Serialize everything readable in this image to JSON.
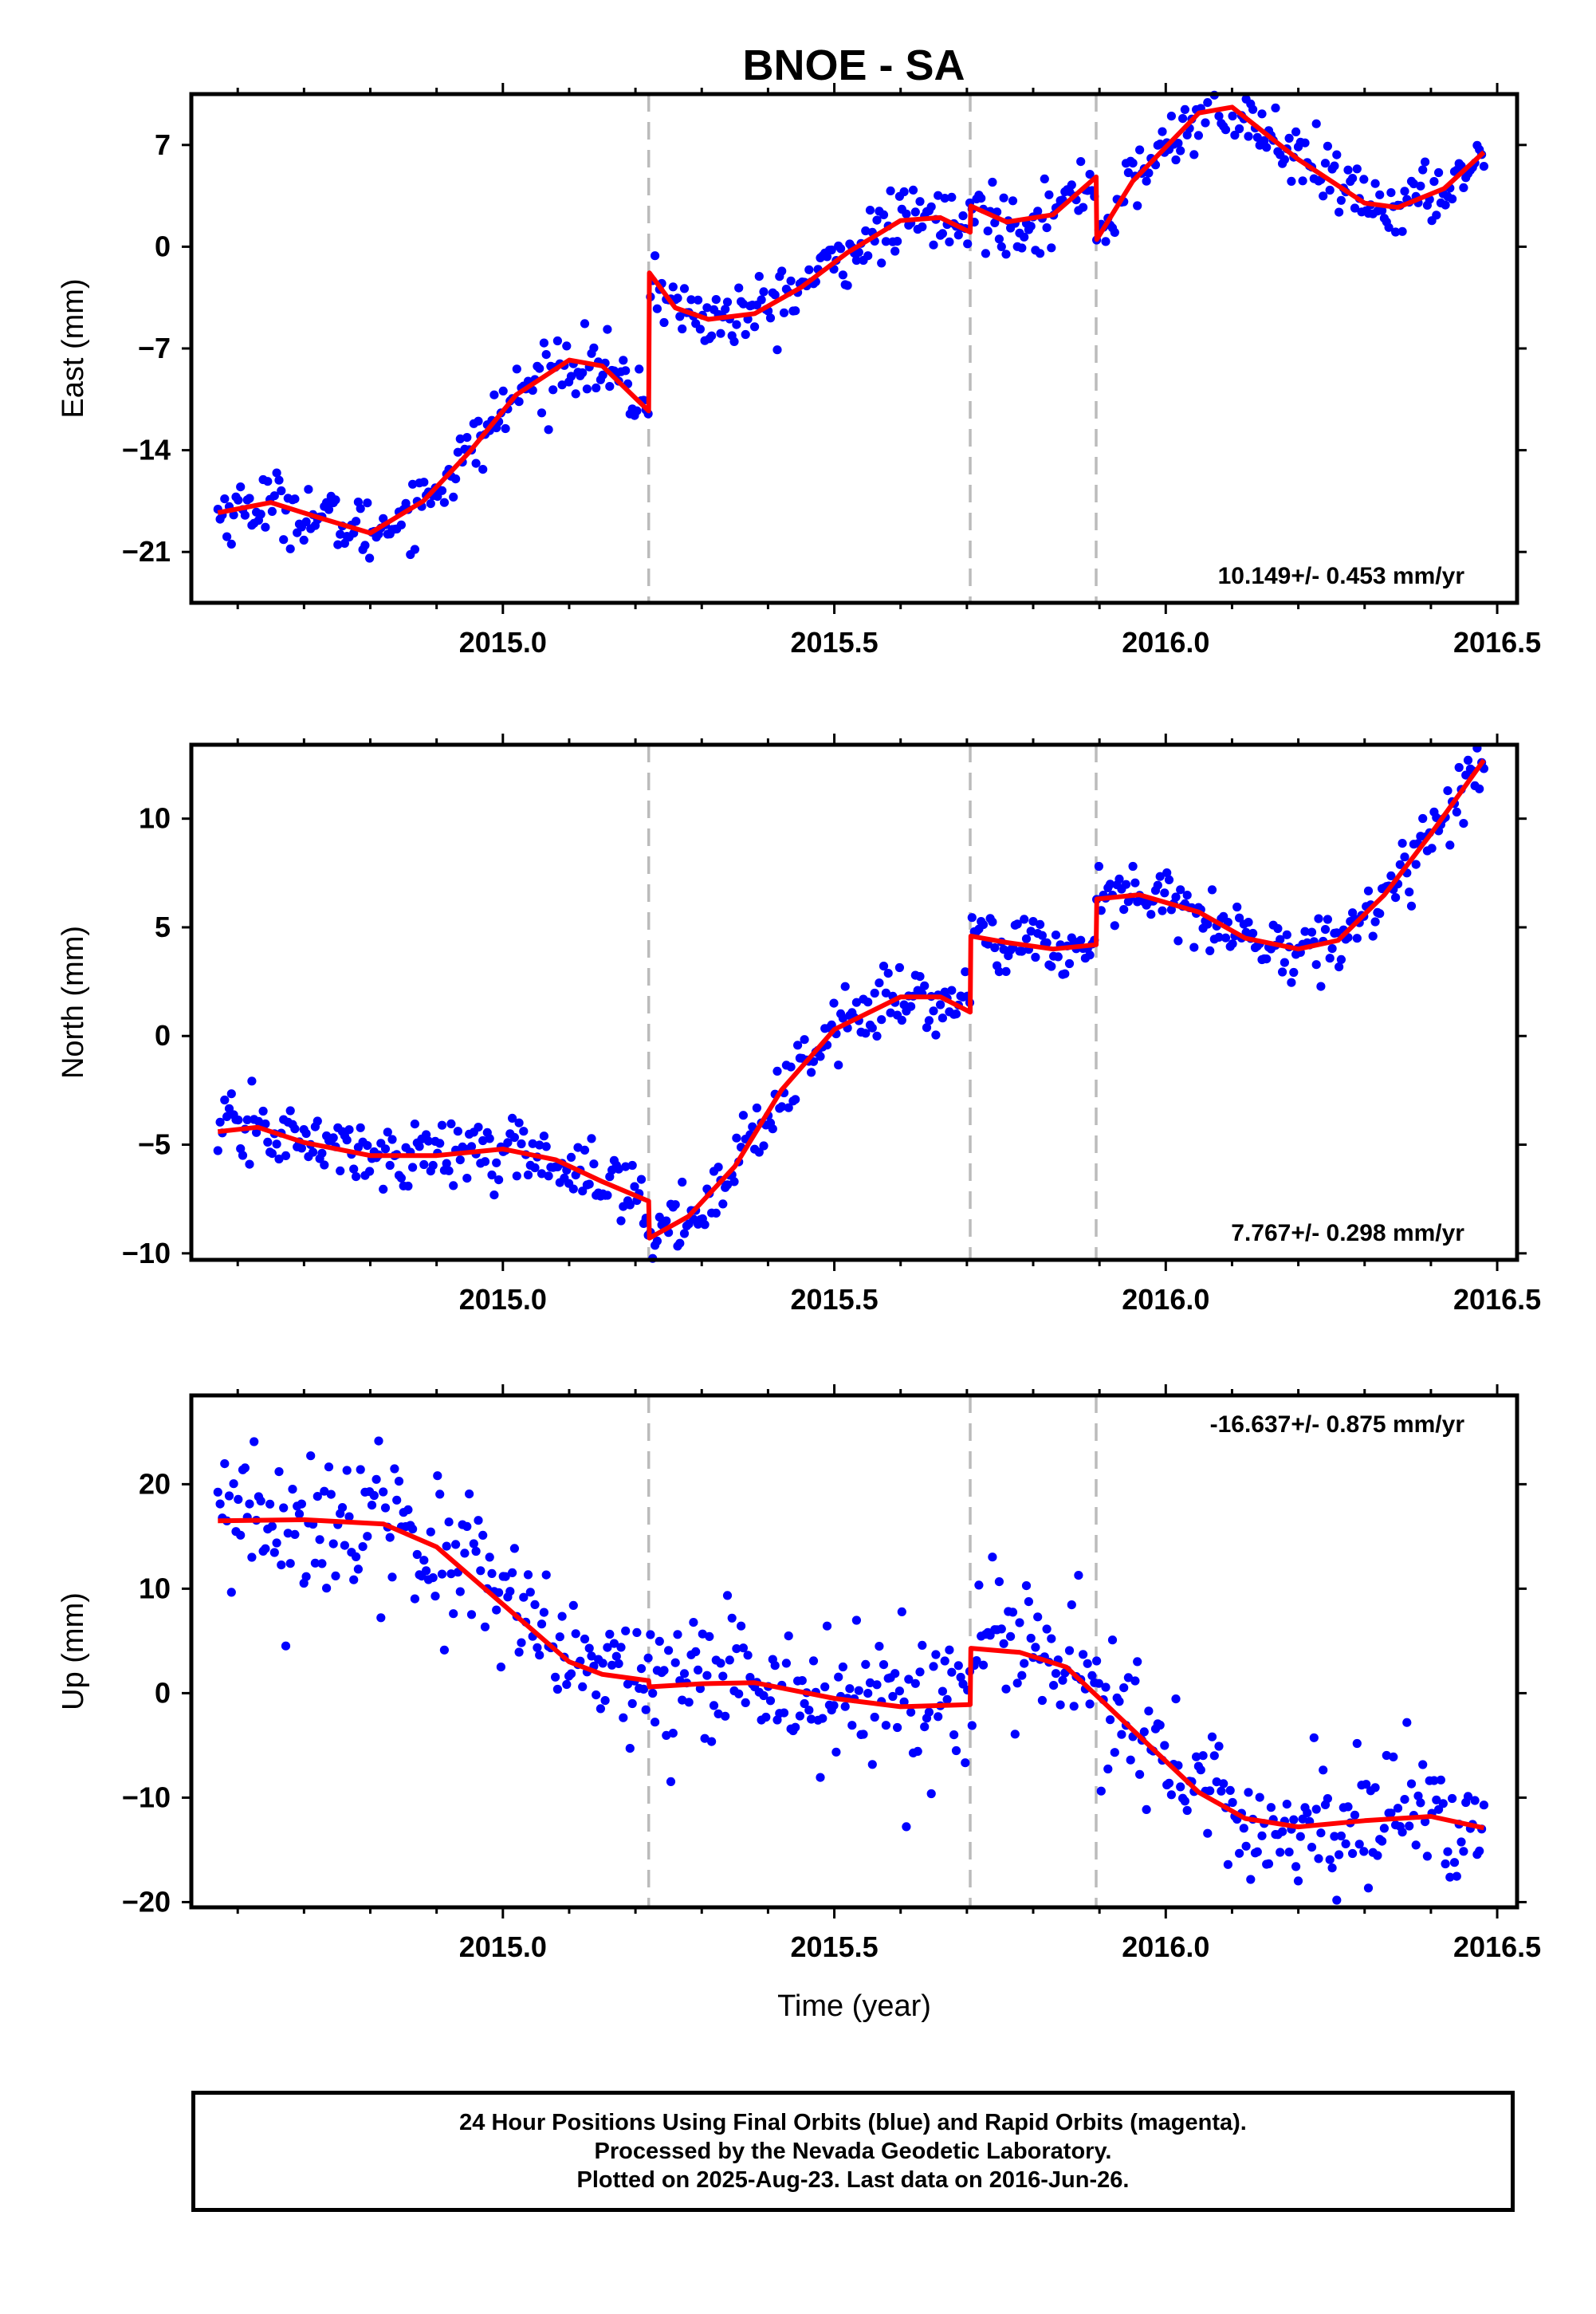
{
  "title": "BNOE - SA",
  "colors": {
    "points": "#0000ff",
    "fit": "#ff0000",
    "offset_lines": "#bbbbbb",
    "frame": "#000000"
  },
  "footer": {
    "line1": "24 Hour Positions Using Final Orbits (blue) and Rapid Orbits (magenta).",
    "line2": "Processed by the Nevada Geodetic Laboratory.",
    "line3": "Plotted on 2025-Aug-23. Last data on 2016-Jun-26."
  },
  "chart_data": [
    {
      "type": "scatter",
      "name": "east",
      "ylabel": "East (mm)",
      "xlabel": "",
      "xlim": [
        2014.53,
        2016.53
      ],
      "ylim": [
        -24.5,
        10.5
      ],
      "yticks": [
        -21,
        -14,
        -7,
        0,
        7
      ],
      "xticks": [
        "2015.0",
        "2015.5",
        "2016.0",
        "2016.5"
      ],
      "offsets": [
        2015.22,
        2015.705,
        2015.895
      ],
      "rate": "10.149+/- 0.453 mm/yr",
      "rate_position": "bottom-right",
      "x_start": 2014.57,
      "x_end": 2016.48,
      "n_points": 560,
      "fit": [
        [
          2014.57,
          -18.3
        ],
        [
          2014.65,
          -17.6
        ],
        [
          2014.72,
          -18.6
        ],
        [
          2014.8,
          -19.7
        ],
        [
          2014.88,
          -17.5
        ],
        [
          2014.95,
          -14.1
        ],
        [
          2015.02,
          -10.2
        ],
        [
          2015.1,
          -7.8
        ],
        [
          2015.15,
          -8.2
        ],
        [
          2015.22,
          -11.3
        ],
        [
          2015.221,
          -1.8
        ],
        [
          2015.26,
          -4.2
        ],
        [
          2015.31,
          -5.0
        ],
        [
          2015.38,
          -4.6
        ],
        [
          2015.45,
          -2.8
        ],
        [
          2015.52,
          -0.4
        ],
        [
          2015.6,
          1.8
        ],
        [
          2015.66,
          2.0
        ],
        [
          2015.705,
          1.0
        ],
        [
          2015.706,
          2.8
        ],
        [
          2015.76,
          1.7
        ],
        [
          2015.83,
          2.2
        ],
        [
          2015.895,
          4.8
        ],
        [
          2015.896,
          0.5
        ],
        [
          2015.95,
          4.5
        ],
        [
          2016.05,
          9.2
        ],
        [
          2016.1,
          9.6
        ],
        [
          2016.2,
          6.0
        ],
        [
          2016.3,
          3.0
        ],
        [
          2016.35,
          2.7
        ],
        [
          2016.42,
          4.0
        ],
        [
          2016.48,
          6.5
        ]
      ],
      "scatter_sd": 1.1
    },
    {
      "type": "scatter",
      "name": "north",
      "ylabel": "North (mm)",
      "xlabel": "",
      "xlim": [
        2014.53,
        2016.53
      ],
      "ylim": [
        -10.3,
        13.4
      ],
      "yticks": [
        -10,
        -5,
        0,
        5,
        10
      ],
      "xticks": [
        "2015.0",
        "2015.5",
        "2016.0",
        "2016.5"
      ],
      "offsets": [
        2015.22,
        2015.705,
        2015.895
      ],
      "rate": "7.767+/- 0.298 mm/yr",
      "rate_position": "bottom-right",
      "x_start": 2014.57,
      "x_end": 2016.48,
      "n_points": 560,
      "fit": [
        [
          2014.57,
          -4.4
        ],
        [
          2014.63,
          -4.2
        ],
        [
          2014.7,
          -4.9
        ],
        [
          2014.8,
          -5.5
        ],
        [
          2014.9,
          -5.5
        ],
        [
          2015.0,
          -5.2
        ],
        [
          2015.08,
          -5.7
        ],
        [
          2015.15,
          -6.7
        ],
        [
          2015.22,
          -7.6
        ],
        [
          2015.221,
          -9.3
        ],
        [
          2015.28,
          -8.3
        ],
        [
          2015.35,
          -6.0
        ],
        [
          2015.42,
          -2.5
        ],
        [
          2015.5,
          0.3
        ],
        [
          2015.6,
          1.8
        ],
        [
          2015.66,
          1.8
        ],
        [
          2015.705,
          1.1
        ],
        [
          2015.706,
          4.6
        ],
        [
          2015.76,
          4.3
        ],
        [
          2015.83,
          4.0
        ],
        [
          2015.895,
          4.2
        ],
        [
          2015.896,
          6.3
        ],
        [
          2015.96,
          6.5
        ],
        [
          2016.05,
          5.7
        ],
        [
          2016.12,
          4.5
        ],
        [
          2016.2,
          4.0
        ],
        [
          2016.26,
          4.4
        ],
        [
          2016.33,
          6.5
        ],
        [
          2016.4,
          9.3
        ],
        [
          2016.48,
          12.7
        ]
      ],
      "scatter_sd": 0.75
    },
    {
      "type": "scatter",
      "name": "up",
      "ylabel": "Up (mm)",
      "xlabel": "Time (year)",
      "xlim": [
        2014.53,
        2016.53
      ],
      "ylim": [
        -20.5,
        28.5
      ],
      "yticks": [
        -20,
        -10,
        0,
        10,
        20
      ],
      "xticks": [
        "2015.0",
        "2015.5",
        "2016.0",
        "2016.5"
      ],
      "offsets": [
        2015.22,
        2015.705,
        2015.895
      ],
      "rate": "-16.637+/- 0.875 mm/yr",
      "rate_position": "top-right",
      "x_start": 2014.57,
      "x_end": 2016.48,
      "n_points": 560,
      "fit": [
        [
          2014.57,
          16.5
        ],
        [
          2014.7,
          16.6
        ],
        [
          2014.82,
          16.2
        ],
        [
          2014.9,
          14.0
        ],
        [
          2015.0,
          8.5
        ],
        [
          2015.1,
          3.0
        ],
        [
          2015.15,
          1.8
        ],
        [
          2015.22,
          1.2
        ],
        [
          2015.221,
          0.6
        ],
        [
          2015.3,
          0.9
        ],
        [
          2015.38,
          1.0
        ],
        [
          2015.5,
          -0.5
        ],
        [
          2015.6,
          -1.3
        ],
        [
          2015.705,
          -1.1
        ],
        [
          2015.706,
          4.3
        ],
        [
          2015.78,
          3.9
        ],
        [
          2015.85,
          2.5
        ],
        [
          2015.895,
          -0.2
        ],
        [
          2015.95,
          -3.5
        ],
        [
          2016.05,
          -9.5
        ],
        [
          2016.12,
          -12.0
        ],
        [
          2016.2,
          -12.8
        ],
        [
          2016.3,
          -12.2
        ],
        [
          2016.4,
          -11.8
        ],
        [
          2016.48,
          -12.9
        ]
      ],
      "scatter_sd": 3.4
    }
  ]
}
